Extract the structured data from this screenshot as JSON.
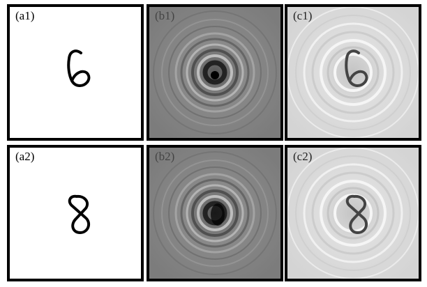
{
  "panels": [
    {
      "label": "(a1)"
    },
    {
      "label": "(b1)"
    },
    {
      "label": "(c1)"
    },
    {
      "label": "(a2)"
    },
    {
      "label": "(b2)"
    },
    {
      "label": "(c2)"
    }
  ]
}
